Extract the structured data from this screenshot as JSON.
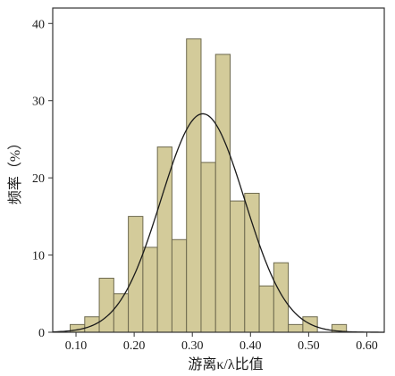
{
  "chart_data": {
    "type": "bar",
    "subtype": "histogram-with-normal-fit",
    "xlabel": "游离κ/λ比值",
    "ylabel": "频率（%）",
    "xlim": [
      0.06,
      0.63
    ],
    "ylim": [
      0,
      42
    ],
    "x_ticks": [
      0.1,
      0.2,
      0.3,
      0.4,
      0.5,
      0.6
    ],
    "x_tick_labels": [
      "0.10",
      "0.20",
      "0.30",
      "0.40",
      "0.50",
      "0.60"
    ],
    "y_ticks": [
      0,
      10,
      20,
      30,
      40
    ],
    "y_tick_labels": [
      "0",
      "10",
      "20",
      "30",
      "40"
    ],
    "bin_width": 0.025,
    "bins": [
      {
        "start": 0.09,
        "value": 1
      },
      {
        "start": 0.115,
        "value": 2
      },
      {
        "start": 0.14,
        "value": 7
      },
      {
        "start": 0.165,
        "value": 5
      },
      {
        "start": 0.19,
        "value": 15
      },
      {
        "start": 0.215,
        "value": 11
      },
      {
        "start": 0.24,
        "value": 24
      },
      {
        "start": 0.265,
        "value": 12
      },
      {
        "start": 0.29,
        "value": 38
      },
      {
        "start": 0.315,
        "value": 22
      },
      {
        "start": 0.34,
        "value": 36
      },
      {
        "start": 0.365,
        "value": 17
      },
      {
        "start": 0.39,
        "value": 18
      },
      {
        "start": 0.415,
        "value": 6
      },
      {
        "start": 0.44,
        "value": 9
      },
      {
        "start": 0.465,
        "value": 1
      },
      {
        "start": 0.49,
        "value": 2
      },
      {
        "start": 0.515,
        "value": 0
      },
      {
        "start": 0.54,
        "value": 1
      }
    ],
    "normal_curve": {
      "mean": 0.318,
      "sd": 0.072,
      "peak": 28.3
    },
    "bar_color": "#d3cb9a",
    "bar_edge_color": "#6e6a4f",
    "grid": false,
    "legend": "none"
  }
}
